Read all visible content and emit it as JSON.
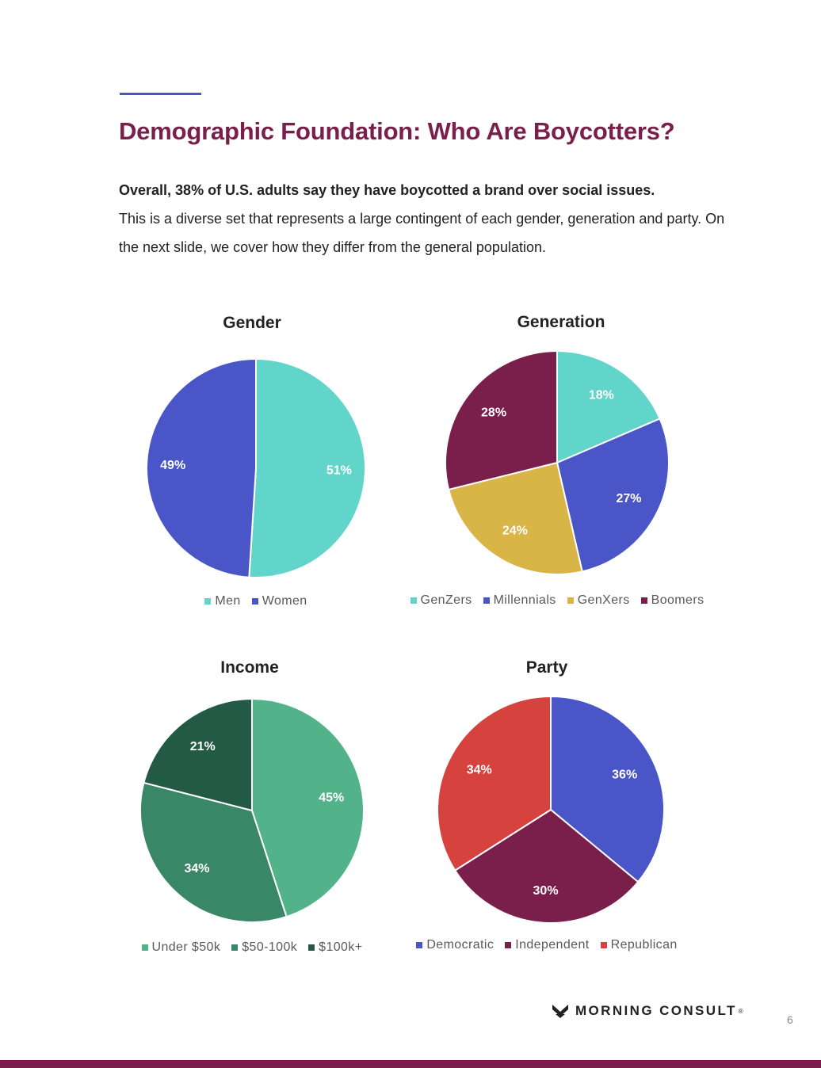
{
  "title": "Demographic Foundation: Who Are Boycotters?",
  "intro": {
    "lead": "Overall, 38% of U.S. adults say they have boycotted a brand over social issues.",
    "body": "This is a diverse set that represents a large contingent of each gender, generation and party. On the next slide, we cover how they differ from the general population."
  },
  "chart_data": [
    {
      "type": "pie",
      "title": "Gender",
      "categories": [
        "Men",
        "Women"
      ],
      "values": [
        51,
        49
      ],
      "labels": [
        "51%",
        "49%"
      ],
      "colors": [
        "#62d5cb",
        "#4a56c8"
      ],
      "legend_position": "bottom"
    },
    {
      "type": "pie",
      "title": "Generation",
      "categories": [
        "GenZers",
        "Millennials",
        "GenXers",
        "Boomers"
      ],
      "values": [
        18,
        27,
        24,
        28
      ],
      "labels": [
        "18%",
        "27%",
        "24%",
        "28%"
      ],
      "colors": [
        "#62d5cb",
        "#4a56c8",
        "#d9b446",
        "#7a1f4c"
      ],
      "legend_position": "bottom"
    },
    {
      "type": "pie",
      "title": "Income",
      "categories": [
        "Under $50k",
        "$50-100k",
        "$100k+"
      ],
      "values": [
        45,
        34,
        21
      ],
      "labels": [
        "45%",
        "34%",
        "21%"
      ],
      "colors": [
        "#52b38b",
        "#3a8767",
        "#235a45"
      ],
      "legend_position": "bottom"
    },
    {
      "type": "pie",
      "title": "Party",
      "categories": [
        "Democratic",
        "Independent",
        "Republican"
      ],
      "values": [
        36,
        30,
        34
      ],
      "labels": [
        "36%",
        "30%",
        "34%"
      ],
      "colors": [
        "#4a56c8",
        "#7a1f4c",
        "#d6433f"
      ],
      "legend_position": "bottom"
    }
  ],
  "brand": {
    "logo_icon": "morning-consult-chevron-logo",
    "name": "MORNING CONSULT",
    "mark": "®"
  },
  "page_number": "6",
  "colors": {
    "title": "#7a1f4c",
    "accent_line": "#4a56c8",
    "bottom_bar": "#7a1f4c"
  }
}
